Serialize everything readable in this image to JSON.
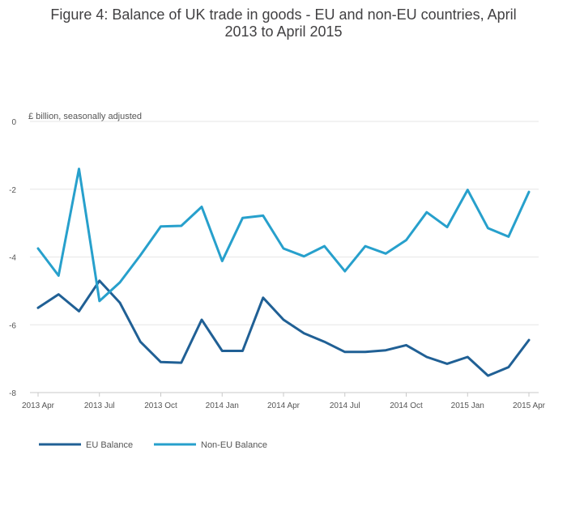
{
  "chart_data": {
    "type": "line",
    "title_lines": [
      "Figure 4: Balance of UK trade in goods - EU and non-EU countries, April",
      "2013 to April 2015"
    ],
    "unit_label": "£ billion, seasonally adjusted",
    "x": [
      "2013-04",
      "2013-05",
      "2013-06",
      "2013-07",
      "2013-08",
      "2013-09",
      "2013-10",
      "2013-11",
      "2013-12",
      "2014-01",
      "2014-02",
      "2014-03",
      "2014-04",
      "2014-05",
      "2014-06",
      "2014-07",
      "2014-08",
      "2014-09",
      "2014-10",
      "2014-11",
      "2014-12",
      "2015-01",
      "2015-02",
      "2015-03",
      "2015-04"
    ],
    "x_tick_labels": [
      "2013 Apr",
      "2013 Jul",
      "2013 Oct",
      "2014 Jan",
      "2014 Apr",
      "2014 Jul",
      "2014 Oct",
      "2015 Jan",
      "2015 Apr"
    ],
    "x_tick_index": [
      0,
      3,
      6,
      9,
      12,
      15,
      18,
      21,
      24
    ],
    "y_ticks": [
      0,
      -2,
      -4,
      -6,
      -8
    ],
    "y_tick_labels": [
      "0",
      "-2",
      "-4",
      "-6",
      "-8"
    ],
    "ylim": [
      -8,
      0
    ],
    "grid": true,
    "legend_position": "bottom-left",
    "series": [
      {
        "name": "EU Balance",
        "color": "#206095",
        "values": [
          -5.5,
          -5.1,
          -5.6,
          -4.7,
          -5.35,
          -6.5,
          -7.1,
          -7.12,
          -5.85,
          -6.77,
          -6.77,
          -5.2,
          -5.85,
          -6.25,
          -6.5,
          -6.8,
          -6.8,
          -6.75,
          -6.6,
          -6.95,
          -7.15,
          -6.95,
          -7.5,
          -7.25,
          -6.45
        ]
      },
      {
        "name": "Non-EU Balance",
        "color": "#27a0cc",
        "values": [
          -3.75,
          -4.55,
          -1.4,
          -5.3,
          -4.75,
          -3.95,
          -3.1,
          -3.08,
          -2.52,
          -4.12,
          -2.85,
          -2.78,
          -3.75,
          -3.98,
          -3.68,
          -4.42,
          -3.68,
          -3.9,
          -3.5,
          -2.68,
          -3.12,
          -2.02,
          -3.15,
          -3.4,
          -2.08
        ]
      }
    ]
  }
}
